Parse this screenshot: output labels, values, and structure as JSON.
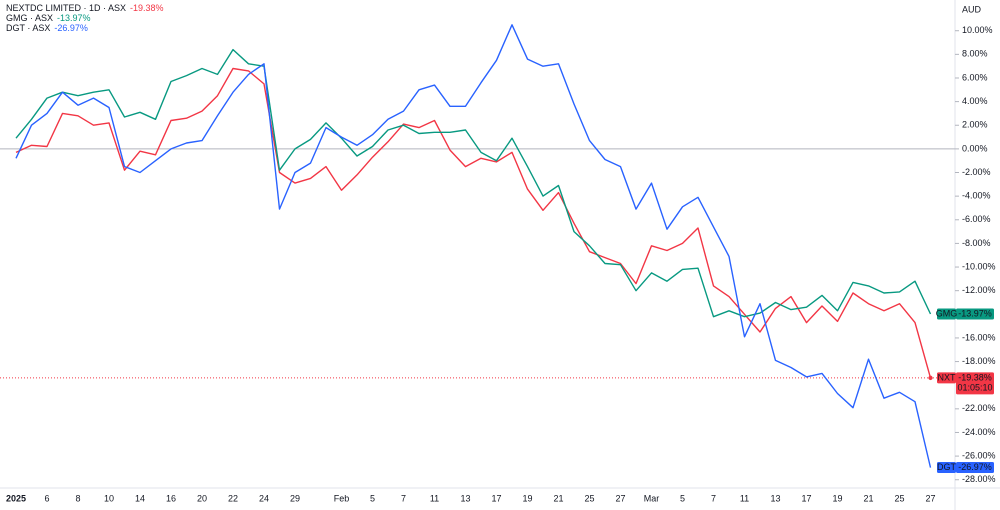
{
  "chart_data": {
    "type": "line",
    "currency": "AUD",
    "countdown": "01:05:10",
    "zero_line": true,
    "categories": [
      "2025",
      null,
      "6",
      null,
      "8",
      null,
      "10",
      null,
      "14",
      null,
      "16",
      null,
      "20",
      null,
      "22",
      null,
      "24",
      null,
      "29",
      null,
      null,
      "Feb",
      null,
      "5",
      null,
      "7",
      null,
      "11",
      null,
      "13",
      null,
      "17",
      null,
      "19",
      null,
      "21",
      null,
      "25",
      null,
      "27",
      null,
      "Mar",
      null,
      "5",
      null,
      "7",
      null,
      "11",
      null,
      "13",
      null,
      "17",
      null,
      "19",
      null,
      "21",
      null,
      "25",
      null,
      "27"
    ],
    "ylim": [
      -28.7,
      12.6
    ],
    "yticks": [
      {
        "value": 10,
        "label": "10.00%"
      },
      {
        "value": 8,
        "label": "8.00%"
      },
      {
        "value": 6,
        "label": "6.00%"
      },
      {
        "value": 4,
        "label": "4.00%"
      },
      {
        "value": 2,
        "label": "2.00%"
      },
      {
        "value": 0,
        "label": "0.00%"
      },
      {
        "value": -2,
        "label": "-2.00%"
      },
      {
        "value": -4,
        "label": "-4.00%"
      },
      {
        "value": -6,
        "label": "-6.00%"
      },
      {
        "value": -8,
        "label": "-8.00%"
      },
      {
        "value": -10,
        "label": "-10.00%"
      },
      {
        "value": -12,
        "label": "-12.00%"
      },
      {
        "value": -16,
        "label": "-16.00%"
      },
      {
        "value": -18,
        "label": "-18.00%"
      },
      {
        "value": -22,
        "label": "-22.00%"
      },
      {
        "value": -24,
        "label": "-24.00%"
      },
      {
        "value": -26,
        "label": "-26.00%"
      },
      {
        "value": -28,
        "label": "-28.00%"
      }
    ],
    "series": [
      {
        "name": "NXT",
        "legend": "NEXTDC LIMITED · 1D · ASX",
        "last_label": "-19.38%",
        "color": "#f23645",
        "last_line": true,
        "values": [
          -0.3,
          0.3,
          0.2,
          3.0,
          2.8,
          2.0,
          2.2,
          -1.8,
          -0.2,
          -0.5,
          2.4,
          2.6,
          3.2,
          4.5,
          6.8,
          6.6,
          5.5,
          -2.0,
          -2.9,
          -2.5,
          -1.5,
          -3.5,
          -2.2,
          -0.7,
          0.6,
          2.1,
          1.8,
          2.4,
          -0.1,
          -1.5,
          -0.8,
          -1.1,
          -0.3,
          -3.4,
          -5.2,
          -3.7,
          -6.3,
          -8.7,
          -9.2,
          -9.7,
          -11.4,
          -8.2,
          -8.6,
          -8.0,
          -6.7,
          -11.6,
          -12.5,
          -14.0,
          -15.5,
          -13.5,
          -12.5,
          -14.7,
          -13.3,
          -14.6,
          -12.2,
          -13.1,
          -13.7,
          -13.1,
          -14.7,
          -19.38
        ]
      },
      {
        "name": "GMG",
        "legend": "GMG · ASX",
        "last_label": "-13.97%",
        "color": "#089981",
        "last_line": false,
        "values": [
          0.9,
          2.5,
          4.3,
          4.8,
          4.5,
          4.8,
          5.0,
          2.7,
          3.1,
          2.5,
          5.7,
          6.2,
          6.8,
          6.3,
          8.4,
          7.2,
          7.0,
          -1.8,
          0.0,
          0.8,
          2.2,
          0.9,
          -0.6,
          0.2,
          1.6,
          2.0,
          1.3,
          1.4,
          1.4,
          1.6,
          -0.3,
          -1.0,
          0.9,
          -1.5,
          -4.0,
          -3.1,
          -7.0,
          -8.2,
          -9.7,
          -9.8,
          -12.0,
          -10.5,
          -11.2,
          -10.2,
          -10.1,
          -14.2,
          -13.7,
          -14.2,
          -13.9,
          -13.0,
          -13.6,
          -13.4,
          -12.4,
          -13.7,
          -11.3,
          -11.6,
          -12.2,
          -12.1,
          -11.2,
          -13.97
        ]
      },
      {
        "name": "DGT",
        "legend": "DGT · ASX",
        "last_label": "-26.97%",
        "color": "#2962ff",
        "last_line": false,
        "values": [
          -0.8,
          2.0,
          3.0,
          4.8,
          3.7,
          4.3,
          3.5,
          -1.5,
          -2.0,
          -1.0,
          0.0,
          0.5,
          0.7,
          2.8,
          4.8,
          6.3,
          7.2,
          -5.1,
          -2.0,
          -1.2,
          1.8,
          1.0,
          0.3,
          1.2,
          2.5,
          3.2,
          5.0,
          5.4,
          3.6,
          3.6,
          5.6,
          7.5,
          10.5,
          7.6,
          7.0,
          7.2,
          3.8,
          0.7,
          -0.9,
          -1.5,
          -5.1,
          -2.9,
          -6.8,
          -4.9,
          -4.1,
          -6.6,
          -9.1,
          -15.9,
          -13.1,
          -17.9,
          -18.5,
          -19.3,
          -19.0,
          -20.7,
          -21.9,
          -17.8,
          -21.1,
          -20.6,
          -21.4,
          -26.97
        ]
      }
    ]
  }
}
